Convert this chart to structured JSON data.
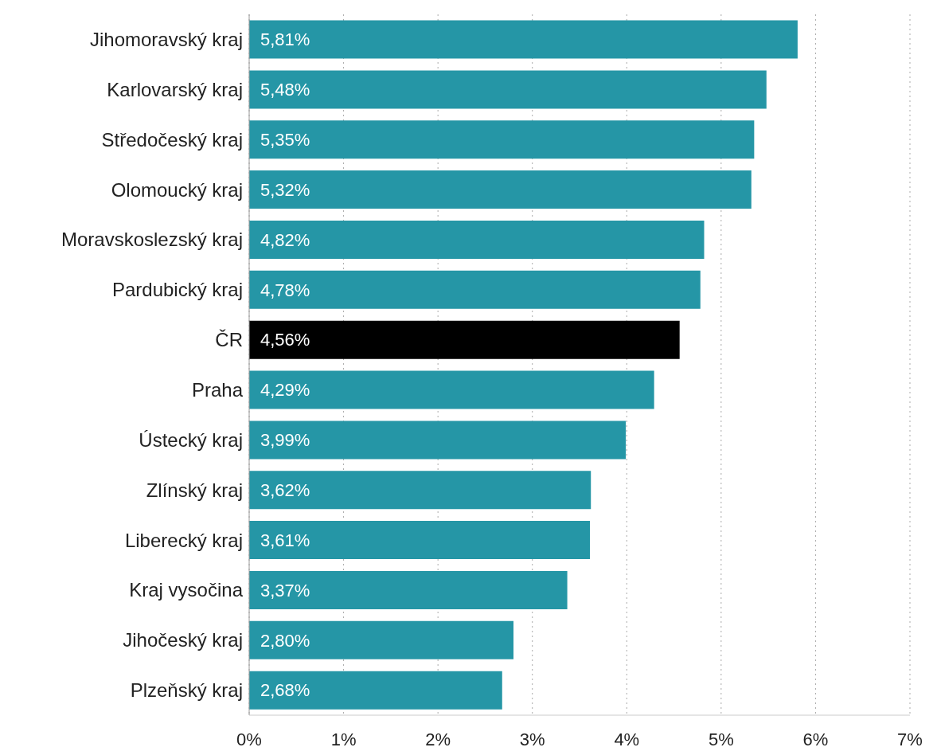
{
  "chart_data": {
    "type": "bar",
    "orientation": "horizontal",
    "categories": [
      "Jihomoravský kraj",
      "Karlovarský kraj",
      "Středočeský kraj",
      "Olomoucký kraj",
      "Moravskoslezský kraj",
      "Pardubický kraj",
      "ČR",
      "Praha",
      "Ústecký kraj",
      "Zlínský kraj",
      "Liberecký kraj",
      "Kraj vysočina",
      "Jihočeský kraj",
      "Plzeňský kraj"
    ],
    "values": [
      5.81,
      5.48,
      5.35,
      5.32,
      4.82,
      4.78,
      4.56,
      4.29,
      3.99,
      3.62,
      3.61,
      3.37,
      2.8,
      2.68
    ],
    "colors": [
      "#2596a6",
      "#2596a6",
      "#2596a6",
      "#2596a6",
      "#2596a6",
      "#2596a6",
      "#000000",
      "#2596a6",
      "#2596a6",
      "#2596a6",
      "#2596a6",
      "#2596a6",
      "#2596a6",
      "#2596a6"
    ],
    "value_labels": [
      "5,81%",
      "5,48%",
      "5,35%",
      "5,32%",
      "4,82%",
      "4,78%",
      "4,56%",
      "4,29%",
      "3,99%",
      "3,62%",
      "3,61%",
      "3,37%",
      "2,80%",
      "2,68%"
    ],
    "xlim": [
      0,
      7
    ],
    "xticks": [
      {
        "value": 0,
        "label": "0%"
      },
      {
        "value": 1,
        "label": "1%"
      },
      {
        "value": 2,
        "label": "2%"
      },
      {
        "value": 3,
        "label": "3%"
      },
      {
        "value": 4,
        "label": "4%"
      },
      {
        "value": 5,
        "label": "5%"
      },
      {
        "value": 6,
        "label": "6%"
      },
      {
        "value": 7,
        "label": "7%"
      }
    ],
    "grid": "x"
  }
}
